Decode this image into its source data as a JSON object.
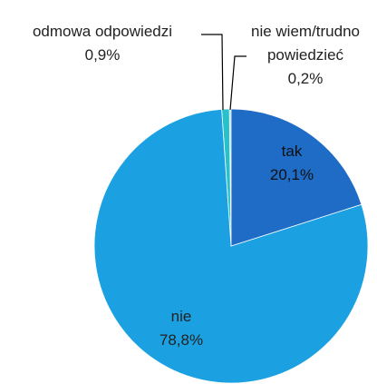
{
  "chart_data": {
    "type": "pie",
    "categories": [
      "tak",
      "nie",
      "odmowa odpowiedzi",
      "nie wiem/trudno powiedzieć"
    ],
    "values": [
      20.1,
      78.8,
      0.9,
      0.2
    ],
    "value_labels": [
      "20,1%",
      "78,8%",
      "0,9%",
      "0,2%"
    ],
    "colors": [
      "#1f6cc6",
      "#1ba1e2",
      "#27c1c9",
      "#9fd9ee"
    ]
  }
}
